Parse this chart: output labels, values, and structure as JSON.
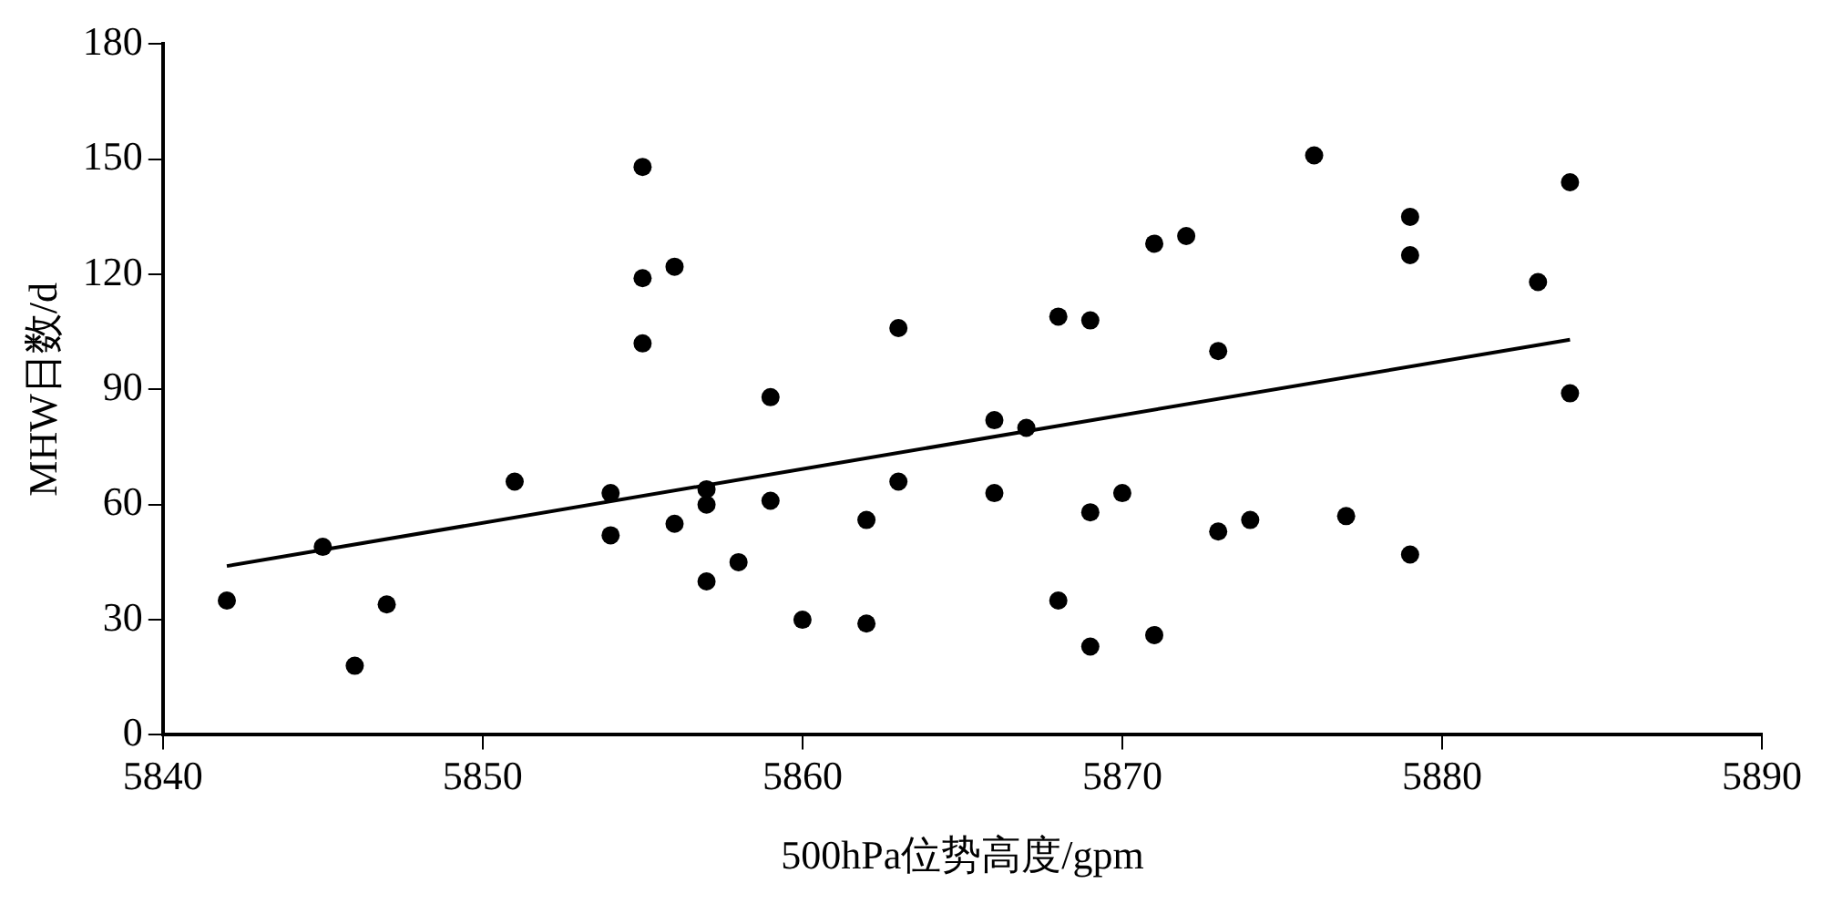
{
  "chart_data": {
    "type": "scatter",
    "xlabel": "500hPa位势高度/gpm",
    "ylabel": "MHW日数/d",
    "xlim": [
      5840,
      5890
    ],
    "xticks": [
      5840,
      5850,
      5860,
      5870,
      5880,
      5890
    ],
    "ylim": [
      0,
      180
    ],
    "yticks": [
      0,
      30,
      60,
      90,
      120,
      150,
      180
    ],
    "grid": false,
    "legend": false,
    "marker": "circle",
    "series": [
      {
        "color": "#000000",
        "x": [
          5842,
          5845,
          5846,
          5847,
          5851,
          5854,
          5854,
          5855,
          5855,
          5855,
          5856,
          5856,
          5857,
          5857,
          5857,
          5858,
          5859,
          5859,
          5860,
          5862,
          5862,
          5863,
          5863,
          5866,
          5866,
          5867,
          5868,
          5868,
          5869,
          5869,
          5869,
          5870,
          5871,
          5871,
          5872,
          5873,
          5873,
          5874,
          5876,
          5877,
          5879,
          5879,
          5879,
          5883,
          5884,
          5884
        ],
        "values": [
          35,
          49,
          18,
          34,
          66,
          63,
          52,
          148,
          119,
          102,
          122,
          55,
          64,
          60,
          40,
          45,
          88,
          61,
          30,
          56,
          29,
          106,
          66,
          82,
          63,
          80,
          109,
          35,
          108,
          58,
          23,
          63,
          128,
          26,
          130,
          100,
          53,
          56,
          151,
          57,
          135,
          125,
          47,
          118,
          144,
          89
        ]
      },
      {
        "type": "line",
        "color": "#000000",
        "x": [
          5842,
          5884
        ],
        "values": [
          44,
          103
        ],
        "marker": "none",
        "line_style": "solid"
      }
    ]
  }
}
